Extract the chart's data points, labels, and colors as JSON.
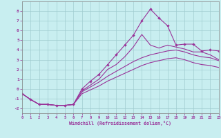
{
  "bg_color": "#c8eef0",
  "grid_color": "#a0ccd0",
  "line_color": "#993399",
  "xlim": [
    0,
    23
  ],
  "ylim": [
    -2.5,
    9.0
  ],
  "xticks": [
    0,
    1,
    2,
    3,
    4,
    5,
    6,
    7,
    8,
    9,
    10,
    11,
    12,
    13,
    14,
    15,
    16,
    17,
    18,
    19,
    20,
    21,
    22,
    23
  ],
  "yticks": [
    -2,
    -1,
    0,
    1,
    2,
    3,
    4,
    5,
    6,
    7,
    8
  ],
  "xlabel": "Windchill (Refroidissement éolien,°C)",
  "lines": [
    {
      "x": [
        0,
        1,
        2,
        3,
        4,
        5,
        6,
        7,
        8,
        9,
        10,
        11,
        12,
        13,
        14,
        15,
        16,
        17,
        18,
        19,
        20,
        21,
        22,
        23
      ],
      "y": [
        -0.5,
        -1.1,
        -1.6,
        -1.6,
        -1.7,
        -1.7,
        -1.6,
        0.0,
        0.8,
        1.5,
        2.5,
        3.5,
        4.5,
        5.5,
        7.0,
        8.2,
        7.3,
        6.5,
        4.5,
        4.6,
        4.6,
        3.9,
        4.0,
        3.9
      ],
      "markers": true
    },
    {
      "x": [
        0,
        1,
        2,
        3,
        4,
        5,
        6,
        7,
        8,
        9,
        10,
        11,
        12,
        13,
        14,
        15,
        16,
        17,
        18,
        19,
        20,
        21,
        22,
        23
      ],
      "y": [
        -0.5,
        -1.1,
        -1.6,
        -1.6,
        -1.7,
        -1.7,
        -1.6,
        -0.2,
        0.4,
        1.0,
        2.0,
        2.5,
        3.3,
        4.3,
        5.6,
        4.5,
        4.2,
        4.5,
        4.3,
        4.1,
        3.8,
        3.8,
        3.5,
        3.0
      ],
      "markers": false
    },
    {
      "x": [
        0,
        1,
        2,
        3,
        4,
        5,
        6,
        7,
        8,
        9,
        10,
        11,
        12,
        13,
        14,
        15,
        16,
        17,
        18,
        19,
        20,
        21,
        22,
        23
      ],
      "y": [
        -0.5,
        -1.1,
        -1.6,
        -1.6,
        -1.7,
        -1.7,
        -1.6,
        -0.3,
        0.2,
        0.7,
        1.3,
        1.8,
        2.3,
        2.8,
        3.2,
        3.5,
        3.7,
        3.9,
        4.0,
        3.8,
        3.5,
        3.3,
        3.2,
        2.9
      ],
      "markers": false
    },
    {
      "x": [
        0,
        1,
        2,
        3,
        4,
        5,
        6,
        7,
        8,
        9,
        10,
        11,
        12,
        13,
        14,
        15,
        16,
        17,
        18,
        19,
        20,
        21,
        22,
        23
      ],
      "y": [
        -0.5,
        -1.1,
        -1.6,
        -1.6,
        -1.7,
        -1.7,
        -1.6,
        -0.5,
        -0.1,
        0.3,
        0.8,
        1.2,
        1.6,
        2.0,
        2.4,
        2.7,
        2.9,
        3.1,
        3.2,
        3.0,
        2.7,
        2.5,
        2.4,
        2.2
      ],
      "markers": false
    }
  ]
}
